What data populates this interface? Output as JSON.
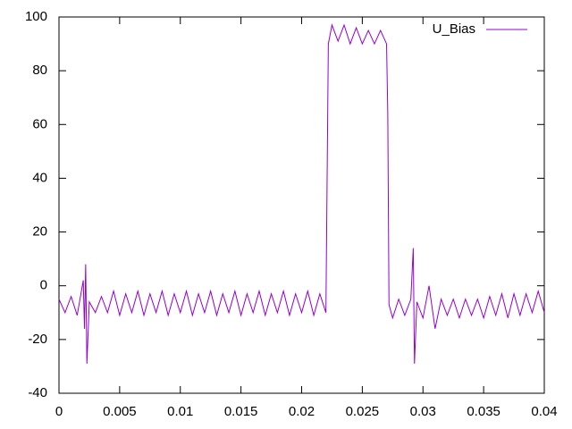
{
  "chart_data": {
    "type": "line",
    "x": [
      0,
      0.0005,
      0.001,
      0.0015,
      0.002,
      0.0021,
      0.0022,
      0.0023,
      0.0025,
      0.003,
      0.0035,
      0.004,
      0.0045,
      0.005,
      0.0055,
      0.006,
      0.0065,
      0.007,
      0.0075,
      0.008,
      0.0085,
      0.009,
      0.0095,
      0.01,
      0.0105,
      0.011,
      0.0115,
      0.012,
      0.0125,
      0.013,
      0.0135,
      0.014,
      0.0145,
      0.015,
      0.0155,
      0.016,
      0.0165,
      0.017,
      0.0175,
      0.018,
      0.0185,
      0.019,
      0.0195,
      0.02,
      0.0205,
      0.021,
      0.0215,
      0.022,
      0.0222,
      0.0225,
      0.023,
      0.0235,
      0.024,
      0.0245,
      0.025,
      0.0255,
      0.026,
      0.0265,
      0.027,
      0.0271,
      0.0272,
      0.0275,
      0.028,
      0.0285,
      0.029,
      0.0292,
      0.0293,
      0.0295,
      0.03,
      0.0305,
      0.031,
      0.0315,
      0.032,
      0.0325,
      0.033,
      0.0335,
      0.034,
      0.0345,
      0.035,
      0.0355,
      0.036,
      0.0365,
      0.037,
      0.0375,
      0.038,
      0.0385,
      0.039,
      0.0395,
      0.04
    ],
    "series": [
      {
        "name": "U_Bias",
        "color": "#9400d3",
        "values": [
          -5,
          -10,
          -4,
          -11,
          2,
          -16,
          8,
          -29,
          -6,
          -10,
          -4,
          -10,
          -2,
          -11,
          -3,
          -10,
          -2,
          -11,
          -3,
          -10,
          -2,
          -11,
          -3,
          -10,
          -2,
          -11,
          -3,
          -10,
          -2,
          -11,
          -3,
          -10,
          -2,
          -11,
          -3,
          -10,
          -2,
          -11,
          -3,
          -10,
          -2,
          -11,
          -3,
          -10,
          -2,
          -11,
          -3,
          -10,
          90,
          97,
          91,
          97,
          90,
          96,
          90,
          95,
          90,
          95,
          90,
          64,
          -7,
          -12,
          -5,
          -11,
          -5,
          14,
          -29,
          -6,
          -12,
          0,
          -16,
          -5,
          -11,
          -5,
          -12,
          -5,
          -11,
          -5,
          -12,
          -4,
          -11,
          -3,
          -12,
          -3,
          -11,
          -3,
          -10,
          -2,
          -10
        ]
      }
    ],
    "xlim": [
      0,
      0.04
    ],
    "xticks": [
      0,
      0.005,
      0.01,
      0.015,
      0.02,
      0.025,
      0.03,
      0.035,
      0.04
    ],
    "ylim": [
      -40,
      100
    ],
    "yticks": [
      -40,
      -20,
      0,
      20,
      40,
      60,
      80,
      100
    ],
    "legend": "top right"
  }
}
